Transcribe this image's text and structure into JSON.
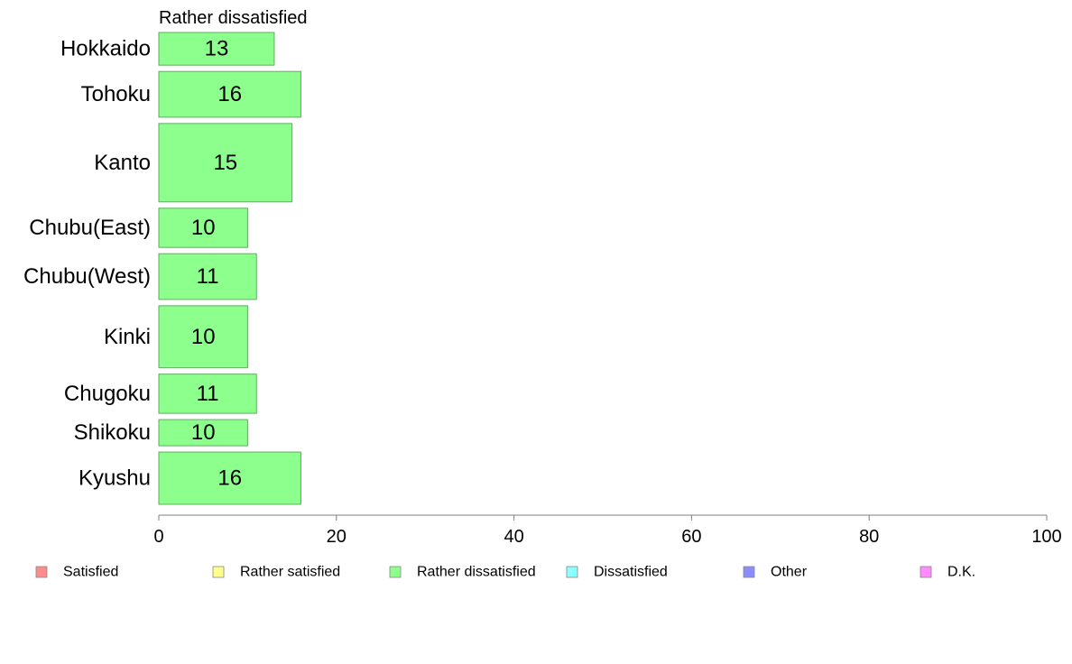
{
  "chart_data": {
    "type": "bar",
    "orientation": "horizontal",
    "title": "Rather dissatisfied",
    "categories": [
      "Hokkaido",
      "Tohoku",
      "Kanto",
      "Chubu(East)",
      "Chubu(West)",
      "Kinki",
      "Chugoku",
      "Shikoku",
      "Kyushu"
    ],
    "values": [
      13,
      16,
      15,
      10,
      11,
      10,
      11,
      10,
      16
    ],
    "bar_weights": [
      1.0,
      1.4,
      2.4,
      1.2,
      1.4,
      1.9,
      1.2,
      0.8,
      1.6
    ],
    "xlim": [
      0,
      100
    ],
    "xticks": [
      "0",
      "20",
      "40",
      "60",
      "80",
      "100"
    ],
    "xlabel": "",
    "ylabel": "",
    "grid": false,
    "bar_color": "#8cff8c",
    "bar_edge": "#5fae5f",
    "legend_position": "bottom",
    "legend": [
      {
        "label": "Satisfied",
        "color": "#ff8c8c"
      },
      {
        "label": "Rather satisfied",
        "color": "#ffff8c"
      },
      {
        "label": "Rather dissatisfied",
        "color": "#8cff8c"
      },
      {
        "label": "Dissatisfied",
        "color": "#8cffff"
      },
      {
        "label": "Other",
        "color": "#8c8cff"
      },
      {
        "label": "D.K.",
        "color": "#ff8cff"
      }
    ]
  }
}
